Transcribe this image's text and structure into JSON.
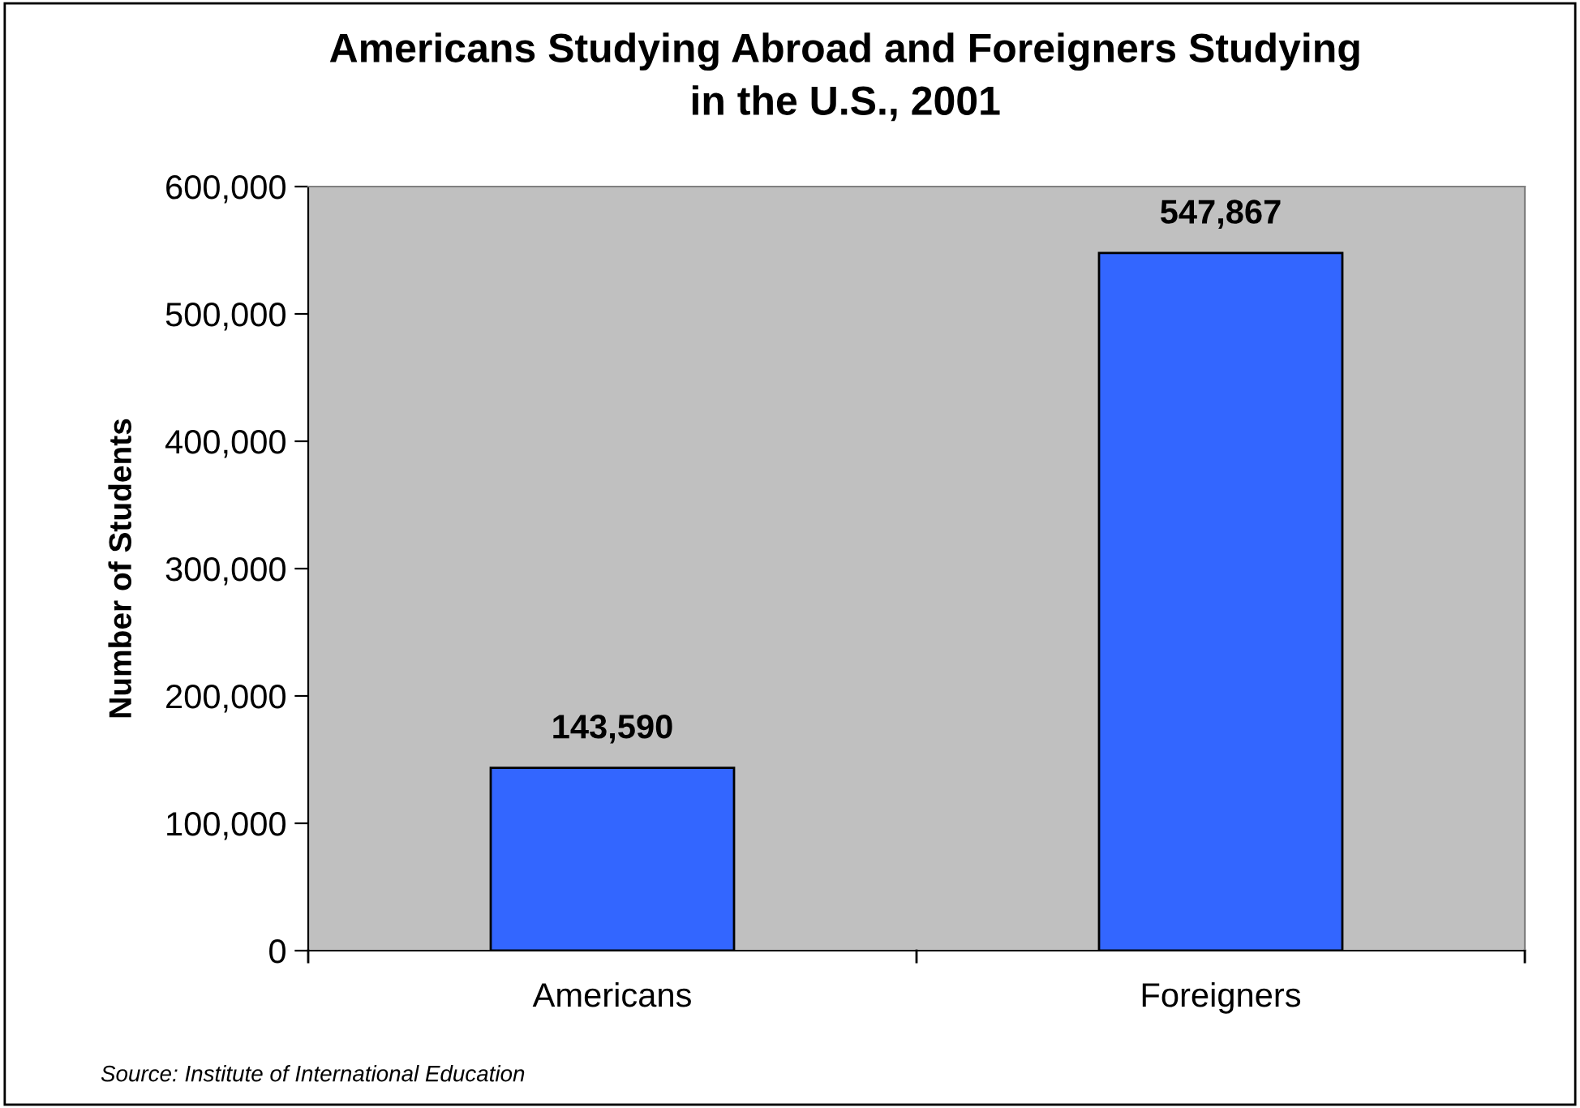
{
  "chart_data": {
    "type": "bar",
    "title": "Americans Studying Abroad and Foreigners Studying\nin the U.S., 2001",
    "ylabel": "Number of Students",
    "categories": [
      "Americans",
      "Foreigners"
    ],
    "values": [
      143590,
      547867
    ],
    "value_labels": [
      "143,590",
      "547,867"
    ],
    "color": "#3366ff",
    "ylim": [
      0,
      600000
    ],
    "yticks": [
      0,
      {
        "value": 100000,
        "label": "100,000"
      },
      {
        "value": 200000,
        "label": "200,000"
      },
      {
        "value": 300000,
        "label": "300,000"
      },
      {
        "value": 400000,
        "label": "400,000"
      },
      {
        "value": 500000,
        "label": "500,000"
      },
      {
        "value": 600000,
        "label": "600,000"
      }
    ],
    "grid": false,
    "legend": false,
    "annotations": [
      "Source: Institute of International Education"
    ]
  }
}
